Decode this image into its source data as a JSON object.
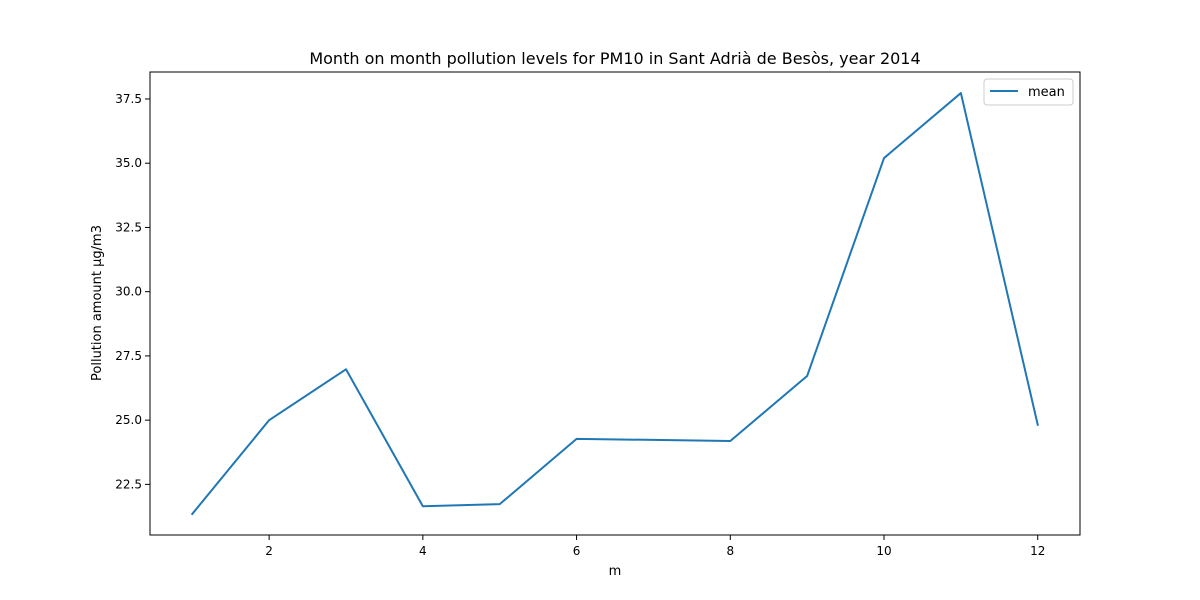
{
  "chart_data": {
    "type": "line",
    "title": "Month on month pollution levels for PM10 in Sant Adrià de Besòs, year 2014",
    "xlabel": "m",
    "ylabel": "Pollution amount µg/m3",
    "x": [
      1,
      2,
      3,
      4,
      5,
      6,
      7,
      8,
      9,
      10,
      11,
      12
    ],
    "series": [
      {
        "name": "mean",
        "color": "#1f77b4",
        "values": [
          21.35,
          25.0,
          26.98,
          21.65,
          21.73,
          24.27,
          24.23,
          24.19,
          26.72,
          35.2,
          37.73,
          24.82
        ]
      }
    ],
    "xticks": [
      "2",
      "4",
      "6",
      "8",
      "10",
      "12"
    ],
    "yticks": [
      "22.5",
      "25.0",
      "27.5",
      "30.0",
      "32.5",
      "35.0",
      "37.5"
    ],
    "xlim": [
      0.45,
      12.55
    ],
    "ylim": [
      20.53,
      38.55
    ],
    "grid": false,
    "legend": "top-right"
  }
}
